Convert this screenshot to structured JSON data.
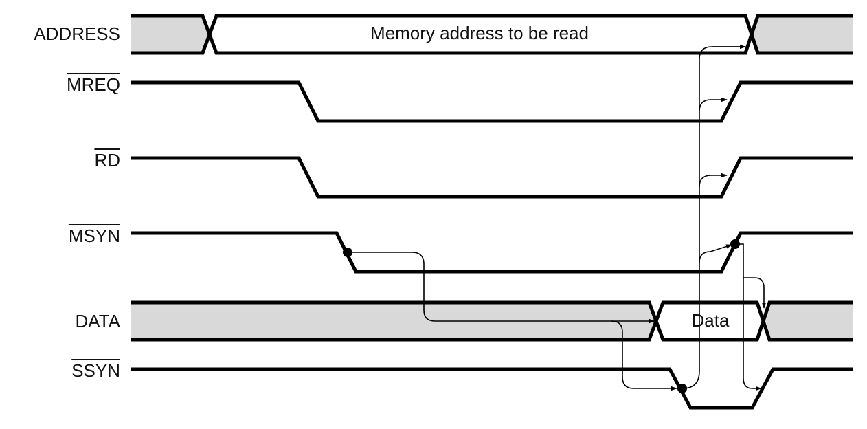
{
  "signals": [
    {
      "id": "address",
      "label": "ADDRESS",
      "overline": false
    },
    {
      "id": "mreq",
      "label": "MREQ",
      "overline": true
    },
    {
      "id": "rd",
      "label": "RD",
      "overline": true
    },
    {
      "id": "msyn",
      "label": "MSYN",
      "overline": true
    },
    {
      "id": "data",
      "label": "DATA",
      "overline": false
    },
    {
      "id": "ssyn",
      "label": "SSYN",
      "overline": true
    }
  ],
  "bus_labels": {
    "address": "Memory address to be read",
    "data": "Data"
  },
  "colors": {
    "line": "#000000",
    "undefined_fill": "#d9d9d9",
    "valid_fill": "#ffffff"
  }
}
